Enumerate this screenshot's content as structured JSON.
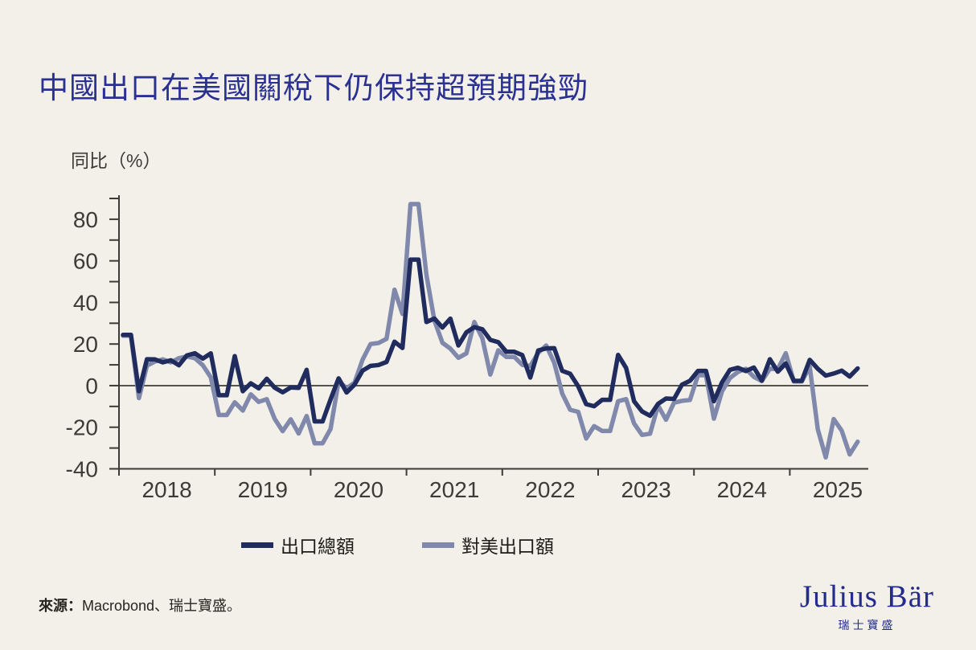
{
  "title": "中國出口在美國關稅下仍保持超預期強勁",
  "source": {
    "label": "來源：",
    "text": "Macrobond、瑞士寶盛。"
  },
  "logo": {
    "wordmark": "Julius Bär",
    "subtext": "瑞士寶盛"
  },
  "colors": {
    "background": "#f2f0e8",
    "title": "#2b3192",
    "axis": "#3c3b35",
    "zero_line": "#55544c",
    "total_exports": "#202b5e",
    "us_exports": "#8089ac",
    "logo": "#232c8c"
  },
  "chart_data": {
    "type": "line",
    "title": "中國出口在美國關稅下仍保持超預期強勁",
    "ylabel": "同比（%）",
    "xlabel": "",
    "ylim": [
      -40,
      91
    ],
    "y_tick_step": 10,
    "y_tick_labels": [
      -40,
      -20,
      0,
      20,
      40,
      60,
      80
    ],
    "x_tick_years": [
      2018,
      2019,
      2020,
      2021,
      2022,
      2023,
      2024,
      2025
    ],
    "frequency": "monthly",
    "x_start": "2018-01",
    "x_end": "2025-09",
    "grid": false,
    "zero_line": true,
    "legend_position": "bottom",
    "series": [
      {
        "name": "出口總額",
        "color": "#202b5e",
        "values": [
          24.4,
          24.4,
          -2.7,
          12.7,
          12.6,
          11.2,
          12.2,
          9.8,
          14.5,
          15.6,
          13.0,
          15.5,
          -4.6,
          -4.6,
          14.2,
          -2.7,
          1.1,
          -1.3,
          3.3,
          -1.0,
          -3.2,
          -0.9,
          -1.1,
          7.6,
          -17.2,
          -17.2,
          -6.6,
          3.5,
          -3.3,
          0.5,
          7.2,
          9.5,
          9.9,
          11.4,
          21.1,
          18.1,
          60.6,
          60.6,
          30.6,
          32.3,
          27.9,
          32.2,
          19.3,
          25.6,
          28.1,
          27.1,
          22.0,
          20.9,
          16.3,
          16.3,
          14.7,
          3.9,
          16.9,
          17.9,
          18.0,
          7.1,
          5.7,
          -0.3,
          -8.9,
          -9.9,
          -6.8,
          -6.8,
          14.8,
          8.5,
          -7.5,
          -12.4,
          -14.5,
          -8.8,
          -6.2,
          -6.4,
          0.5,
          2.3,
          7.1,
          7.1,
          -7.5,
          1.5,
          7.6,
          8.6,
          7.0,
          8.7,
          2.4,
          12.7,
          6.7,
          10.7,
          2.3,
          2.3,
          12.4,
          8.1,
          4.8,
          5.8,
          7.2,
          4.4,
          8.3
        ]
      },
      {
        "name": "對美出口額",
        "color": "#8089ac",
        "values": [
          24.0,
          24.0,
          -6.0,
          9.6,
          11.6,
          12.6,
          11.2,
          13.2,
          14.0,
          13.2,
          9.8,
          4.0,
          -14.1,
          -14.1,
          -8.0,
          -12.0,
          -4.2,
          -7.8,
          -6.5,
          -16.0,
          -21.9,
          -16.2,
          -23.0,
          -14.6,
          -27.7,
          -27.7,
          -20.8,
          2.2,
          -1.3,
          1.4,
          12.5,
          20.0,
          20.5,
          22.5,
          46.1,
          34.5,
          87.3,
          87.3,
          53.3,
          31.2,
          20.6,
          17.8,
          13.4,
          15.5,
          30.6,
          22.7,
          5.3,
          17.0,
          13.8,
          13.8,
          10.0,
          9.4,
          15.8,
          19.3,
          11.0,
          -3.8,
          -11.6,
          -12.6,
          -25.4,
          -19.5,
          -21.8,
          -21.8,
          -7.5,
          -6.5,
          -18.2,
          -23.7,
          -23.1,
          -9.5,
          -16.4,
          -8.2,
          -7.3,
          -6.9,
          5.0,
          5.0,
          -15.9,
          -2.8,
          3.6,
          6.6,
          8.1,
          4.2,
          2.2,
          8.1,
          8.0,
          15.6,
          2.0,
          2.0,
          9.1,
          -21.0,
          -34.5,
          -16.1,
          -21.7,
          -33.1,
          -27.0
        ]
      }
    ]
  }
}
